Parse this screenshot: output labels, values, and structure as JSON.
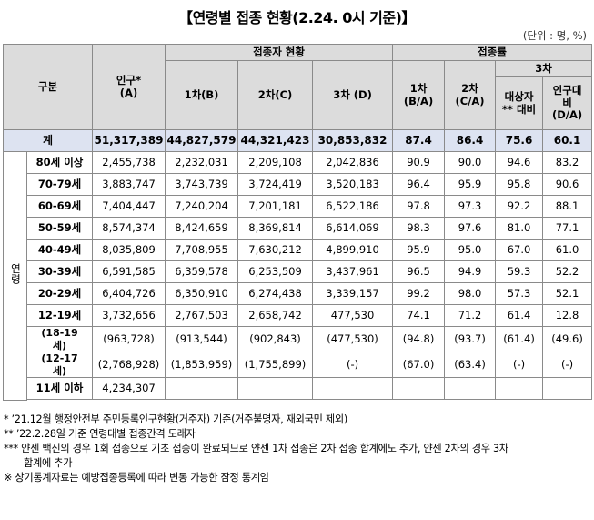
{
  "title": "【연령별 접종 현황(2.24. 0시 기준)】",
  "unit": "(단위 : 명, %)",
  "header": {
    "category": "구분",
    "population": "인구*\n(A)",
    "vaccinated_group": "접종자 현황",
    "rate_group": "접종률",
    "dose1": "1차(B)",
    "dose2": "2차(C)",
    "dose3": "3차 (D)",
    "rate1": "1차\n(B/A)",
    "rate2": "2차\n(C/A)",
    "rate3_group": "3차",
    "rate3_target": "대상자\n** 대비",
    "rate3_pop": "인구대\n비\n(D/A)"
  },
  "total": {
    "label": "계",
    "population": "51,317,389",
    "dose1": "44,827,579",
    "dose2": "44,321,423",
    "dose3": "30,853,832",
    "rate1": "87.4",
    "rate2": "86.4",
    "rate3_target": "75.6",
    "rate3_pop": "60.1"
  },
  "age_side_label": "연령",
  "rows": [
    {
      "label": "80세 이상",
      "population": "2,455,738",
      "dose1": "2,232,031",
      "dose2": "2,209,108",
      "dose3": "2,042,836",
      "rate1": "90.9",
      "rate2": "90.0",
      "rate3_target": "94.6",
      "rate3_pop": "83.2"
    },
    {
      "label": "70-79세",
      "population": "3,883,747",
      "dose1": "3,743,739",
      "dose2": "3,724,419",
      "dose3": "3,520,183",
      "rate1": "96.4",
      "rate2": "95.9",
      "rate3_target": "95.8",
      "rate3_pop": "90.6"
    },
    {
      "label": "60-69세",
      "population": "7,404,447",
      "dose1": "7,240,204",
      "dose2": "7,201,181",
      "dose3": "6,522,186",
      "rate1": "97.8",
      "rate2": "97.3",
      "rate3_target": "92.2",
      "rate3_pop": "88.1"
    },
    {
      "label": "50-59세",
      "population": "8,574,374",
      "dose1": "8,424,659",
      "dose2": "8,369,814",
      "dose3": "6,614,069",
      "rate1": "98.3",
      "rate2": "97.6",
      "rate3_target": "81.0",
      "rate3_pop": "77.1"
    },
    {
      "label": "40-49세",
      "population": "8,035,809",
      "dose1": "7,708,955",
      "dose2": "7,630,212",
      "dose3": "4,899,910",
      "rate1": "95.9",
      "rate2": "95.0",
      "rate3_target": "67.0",
      "rate3_pop": "61.0"
    },
    {
      "label": "30-39세",
      "population": "6,591,585",
      "dose1": "6,359,578",
      "dose2": "6,253,509",
      "dose3": "3,437,961",
      "rate1": "96.5",
      "rate2": "94.9",
      "rate3_target": "59.3",
      "rate3_pop": "52.2"
    },
    {
      "label": "20-29세",
      "population": "6,404,726",
      "dose1": "6,350,910",
      "dose2": "6,274,438",
      "dose3": "3,339,157",
      "rate1": "99.2",
      "rate2": "98.0",
      "rate3_target": "57.3",
      "rate3_pop": "52.1"
    },
    {
      "label": "12-19세",
      "population": "3,732,656",
      "dose1": "2,767,503",
      "dose2": "2,658,742",
      "dose3": "477,530",
      "rate1": "74.1",
      "rate2": "71.2",
      "rate3_target": "61.4",
      "rate3_pop": "12.8"
    }
  ],
  "sub_rows": [
    {
      "label": "(18-19\n세)",
      "population": "(963,728)",
      "dose1": "(913,544)",
      "dose2": "(902,843)",
      "dose3": "(477,530)",
      "rate1": "(94.8)",
      "rate2": "(93.7)",
      "rate3_target": "(61.4)",
      "rate3_pop": "(49.6)"
    },
    {
      "label": "(12-17\n세)",
      "population": "(2,768,928)",
      "dose1": "(1,853,959)",
      "dose2": "(1,755,899)",
      "dose3": "(-)",
      "rate1": "(67.0)",
      "rate2": "(63.4)",
      "rate3_target": "(-)",
      "rate3_pop": "(-)"
    }
  ],
  "under11": {
    "label": "11세 이하",
    "population": "4,234,307"
  },
  "notes": [
    "* ’21.12월 행정안전부 주민등록인구현황(거주자) 기준(거주불명자, 재외국민 제외)",
    "** ’22.2.28일 기준 연령대별 접종간격 도래자",
    "*** 얀센 백신의 경우 1회 접종으로 기초 접종이 완료되므로 얀센 1차 접종은 2차 접종 합계에도 추가, 얀센 2차의 경우 3차",
    "합계에 추가",
    "※ 상기통계자료는 예방접종등록에 따라 변동 가능한 잠정 통계임"
  ]
}
